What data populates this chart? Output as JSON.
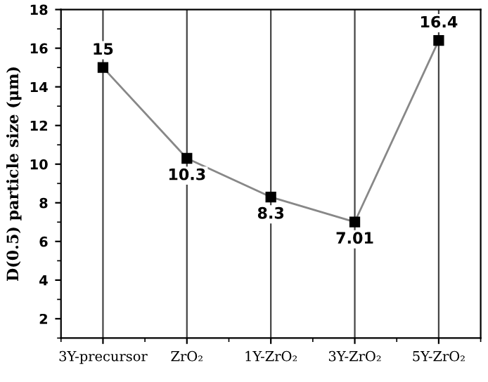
{
  "chart_data": {
    "type": "line",
    "ylabel": "D(0.5) particle size (μm)",
    "categories": [
      "3Y-precursor",
      "ZrO₂",
      "1Y-ZrO₂",
      "3Y-ZrO₂",
      "5Y-ZrO₂"
    ],
    "series": [
      {
        "color": "#000000",
        "values": [
          15,
          10.3,
          8.3,
          7.01,
          16.4
        ]
      }
    ],
    "ylim": [
      1,
      18
    ],
    "yticks": [
      2,
      4,
      6,
      8,
      10,
      12,
      14,
      16,
      18
    ],
    "grid": "x",
    "marker": "square",
    "line_style": "solid",
    "data_labels": true
  }
}
